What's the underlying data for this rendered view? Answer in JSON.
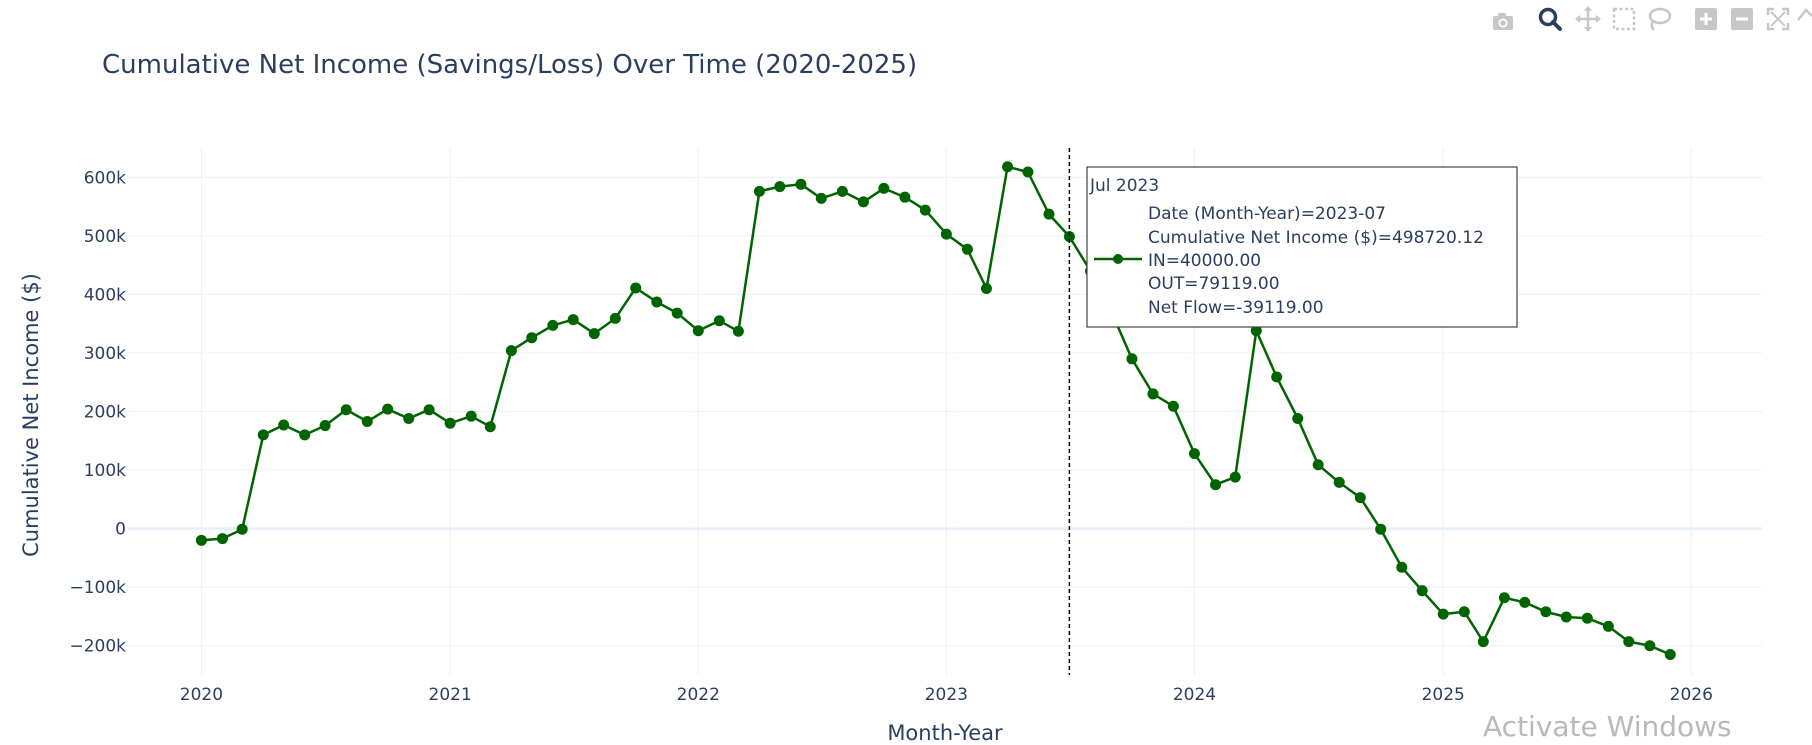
{
  "chart_data": {
    "type": "line",
    "title": "Cumulative Net Income (Savings/Loss) Over Time (2020-2025)",
    "xlabel": "Month-Year",
    "ylabel": "Cumulative Net Income ($)",
    "ylim": [
      -250000,
      650000
    ],
    "yticks": [
      {
        "v": -200000,
        "label": "−200k"
      },
      {
        "v": -100000,
        "label": "−100k"
      },
      {
        "v": 0,
        "label": "0"
      },
      {
        "v": 100000,
        "label": "100k"
      },
      {
        "v": 200000,
        "label": "200k"
      },
      {
        "v": 300000,
        "label": "300k"
      },
      {
        "v": 400000,
        "label": "400k"
      },
      {
        "v": 500000,
        "label": "500k"
      },
      {
        "v": 600000,
        "label": "600k"
      }
    ],
    "xlim": [
      "2019-09-15",
      "2026-04-15"
    ],
    "xticks": [
      "2020",
      "2021",
      "2022",
      "2023",
      "2024",
      "2025",
      "2026"
    ],
    "grid": true,
    "line_color": "#006400",
    "series": [
      {
        "x": [
          "2020-01",
          "2020-02",
          "2020-03",
          "2020-04",
          "2020-05",
          "2020-06",
          "2020-07",
          "2020-08",
          "2020-09",
          "2020-10",
          "2020-11",
          "2020-12",
          "2021-01",
          "2021-02",
          "2021-03",
          "2021-04",
          "2021-05",
          "2021-06",
          "2021-07",
          "2021-08",
          "2021-09",
          "2021-10",
          "2021-11",
          "2021-12",
          "2022-01",
          "2022-02",
          "2022-03",
          "2022-04",
          "2022-05",
          "2022-06",
          "2022-07",
          "2022-08",
          "2022-09",
          "2022-10",
          "2022-11",
          "2022-12",
          "2023-01",
          "2023-02",
          "2023-03",
          "2023-04",
          "2023-05",
          "2023-06",
          "2023-07",
          "2023-08",
          "2023-09",
          "2023-10",
          "2023-11",
          "2023-12",
          "2024-01",
          "2024-02",
          "2024-03",
          "2024-04",
          "2024-05",
          "2024-06",
          "2024-07",
          "2024-08",
          "2024-09",
          "2024-10",
          "2024-11",
          "2024-12",
          "2025-01",
          "2025-02",
          "2025-03",
          "2025-04",
          "2025-05",
          "2025-06",
          "2025-07",
          "2025-08",
          "2025-09",
          "2025-10",
          "2025-11",
          "2025-12"
        ],
        "values": [
          -20000,
          -17000,
          -1000,
          160000,
          177000,
          160000,
          176000,
          203000,
          183000,
          204000,
          188000,
          203000,
          180000,
          192000,
          174000,
          304000,
          326000,
          347000,
          357000,
          333000,
          359000,
          411000,
          387000,
          368000,
          338000,
          355000,
          337000,
          576000,
          584000,
          588000,
          564000,
          576000,
          558000,
          581000,
          566000,
          544000,
          503000,
          477000,
          410000,
          618000,
          609000,
          537000,
          498720.12,
          440000,
          370000,
          290000,
          230000,
          209000,
          128000,
          75000,
          88000,
          338000,
          259000,
          188000,
          109000,
          79000,
          53000,
          -1000,
          -66000,
          -106000,
          -146000,
          -142000,
          -193000,
          -118000,
          -126000,
          -142000,
          -151000,
          -153000,
          -167000,
          -193000,
          -200000,
          -215000
        ]
      }
    ],
    "hover": {
      "x": "2023-07",
      "title": "Jul 2023",
      "rows": [
        "Date (Month-Year)=2023-07",
        "Cumulative Net Income ($)=498720.12",
        "IN=40000.00",
        "OUT=79119.00",
        "Net Flow=-39119.00"
      ]
    }
  },
  "watermark": "Activate Windows",
  "modebar": [
    "camera-icon",
    "zoom-icon",
    "pan-icon",
    "box-select-icon",
    "lasso-select-icon",
    "zoom-in-icon",
    "zoom-out-icon",
    "autoscale-icon",
    "reset-axes-icon"
  ]
}
